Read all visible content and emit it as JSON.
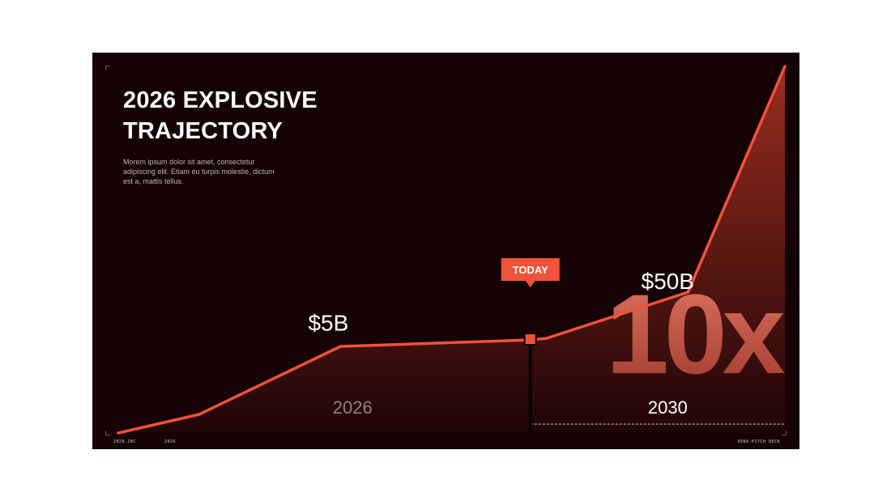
{
  "slide": {
    "title_line1": "2026 EXPLOSIVE",
    "title_line2": "TRAJECTORY",
    "description": "Morem ipsum dolor sit amet, consectetur adipiscing elit. Etiam eu turpis molestie, dictum est a, mattis tellus.",
    "footer_left": "2020.INC",
    "footer_mid": "2026",
    "footer_right": "XENA PITCH DECK"
  },
  "colors": {
    "background": "#160305",
    "accent": "#f0523a",
    "fill_top": "#9a2d1f",
    "fill_bottom": "#1f0507"
  },
  "chart_data": {
    "type": "area",
    "title": "2026 EXPLOSIVE TRAJECTORY",
    "x": [
      0,
      20,
      55,
      102,
      106,
      141,
      165
    ],
    "y": [
      0,
      1.2,
      5,
      6.2,
      6.3,
      12.3,
      50
    ],
    "xlim": [
      0,
      165
    ],
    "ylim": [
      0,
      50
    ],
    "grid": false,
    "labels": [
      {
        "text": "$5B",
        "x": 52,
        "y": 7.3
      },
      {
        "text": "$50B",
        "x": 136,
        "y": 14.9
      }
    ],
    "today": {
      "label": "TODAY",
      "x": 102,
      "y": 6.2
    },
    "periods": [
      {
        "label": "2026",
        "x": 58
      },
      {
        "label": "2030",
        "x": 136
      }
    ],
    "multiplier": "10x"
  }
}
